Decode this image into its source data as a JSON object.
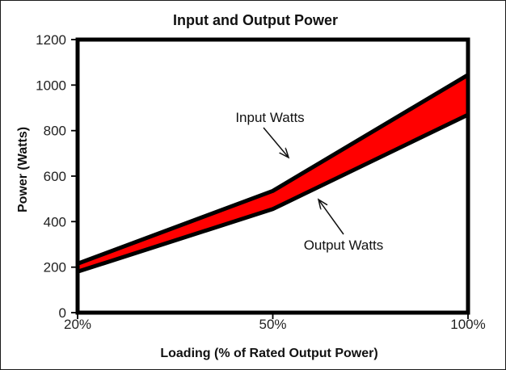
{
  "title": "Input and Output Power",
  "annotations": {
    "input_label": "Input Watts",
    "output_label": "Output Watts"
  },
  "colors": {
    "band_fill": "#FF0000",
    "line": "#000000",
    "text": "#111111",
    "background": "#FFFFFF"
  },
  "chart_data": {
    "type": "area",
    "title": "Input and Output Power",
    "xlabel": "Loading (% of Rated Output Power)",
    "ylabel": "Power (Watts)",
    "categories": [
      "20%",
      "50%",
      "100%"
    ],
    "series": [
      {
        "name": "Input Watts",
        "values": [
          215,
          535,
          1045
        ]
      },
      {
        "name": "Output Watts",
        "values": [
          180,
          455,
          870
        ]
      }
    ],
    "ylim": [
      0,
      1200
    ],
    "yticks": [
      0,
      200,
      400,
      600,
      800,
      1000,
      1200
    ],
    "grid": false,
    "legend_position": "none",
    "notes": "red band = difference between input and output watts"
  }
}
